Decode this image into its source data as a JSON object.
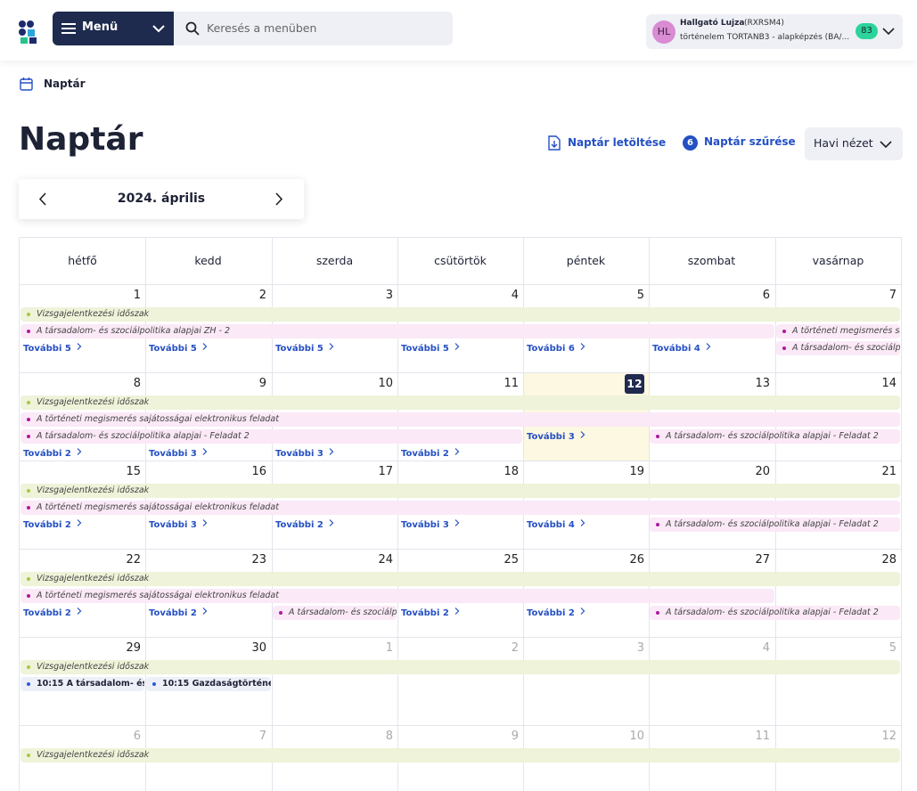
{
  "header": {
    "menu": "Menü",
    "search": "Keresés a menüben",
    "user": {
      "initials": "HL",
      "name": "Hallgató Lujza",
      "code": "(RXRSM4)",
      "program": "történelem TORTANB3 - alapképzés (BA/...",
      "badge": "83"
    }
  },
  "breadcrumb": "Naptár",
  "title": "Naptár",
  "actions": {
    "download": "Naptár letöltése",
    "filter_count": "6",
    "filter": "Naptár szűrése",
    "view": "Havi nézet"
  },
  "month": "2024. április",
  "weekdays": [
    "hétfő",
    "kedd",
    "szerda",
    "csütörtök",
    "péntek",
    "szombat",
    "vasárnap"
  ],
  "weeks": [
    {
      "days": [
        {
          "day": 1
        },
        {
          "day": 2
        },
        {
          "day": 3
        },
        {
          "day": 4
        },
        {
          "day": 5
        },
        {
          "day": 6
        },
        {
          "day": 7
        }
      ],
      "events": [
        {
          "label": "Vizsgajelentkezési időszak",
          "kind": "period",
          "lane": 0,
          "start": 0,
          "end": 6
        },
        {
          "label": "A társadalom- és szociálpolitika alapjai ZH - 2",
          "kind": "deadline",
          "lane": 1,
          "start": 0,
          "end": 5
        },
        {
          "label": "A történeti megismerés sa...",
          "kind": "deadline",
          "lane": 1,
          "start": 6,
          "end": 6
        },
        {
          "label": "A társadalom- és szociálp...",
          "kind": "deadline",
          "lane": 2,
          "start": 6,
          "end": 6
        }
      ],
      "more": [
        "További 5",
        "További 5",
        "További 5",
        "További 5",
        "További 6",
        "További 4",
        null
      ]
    },
    {
      "days": [
        {
          "day": 8
        },
        {
          "day": 9
        },
        {
          "day": 10
        },
        {
          "day": 11
        },
        {
          "day": 12,
          "today": true
        },
        {
          "day": 13
        },
        {
          "day": 14
        }
      ],
      "events": [
        {
          "label": "Vizsgajelentkezési időszak",
          "kind": "period",
          "lane": 0,
          "start": 0,
          "end": 6
        },
        {
          "label": "A történeti megismerés sajátosságai elektronikus feladat",
          "kind": "deadline",
          "lane": 1,
          "start": 0,
          "end": 6
        },
        {
          "label": "A társadalom- és szociálpolitika alapjai - Feladat 2",
          "kind": "deadline",
          "lane": 2,
          "start": 0,
          "end": 3
        },
        {
          "label": "A társadalom- és szociálpolitika alapjai - Feladat 2",
          "kind": "deadline",
          "lane": 2,
          "start": 5,
          "end": 6
        }
      ],
      "more": [
        "További 2",
        "További 3",
        "További 3",
        "További 2",
        "További 3",
        null,
        null
      ]
    },
    {
      "days": [
        {
          "day": 15
        },
        {
          "day": 16
        },
        {
          "day": 17
        },
        {
          "day": 18
        },
        {
          "day": 19
        },
        {
          "day": 20
        },
        {
          "day": 21
        }
      ],
      "events": [
        {
          "label": "Vizsgajelentkezési időszak",
          "kind": "period",
          "lane": 0,
          "start": 0,
          "end": 6
        },
        {
          "label": "A történeti megismerés sajátosságai elektronikus feladat",
          "kind": "deadline",
          "lane": 1,
          "start": 0,
          "end": 6
        },
        {
          "label": "A társadalom- és szociálpolitika alapjai - Feladat 2",
          "kind": "deadline",
          "lane": 2,
          "start": 5,
          "end": 6
        }
      ],
      "more": [
        "További 2",
        "További 3",
        "További 2",
        "További 3",
        "További 4",
        null,
        null
      ]
    },
    {
      "days": [
        {
          "day": 22
        },
        {
          "day": 23
        },
        {
          "day": 24
        },
        {
          "day": 25
        },
        {
          "day": 26
        },
        {
          "day": 27
        },
        {
          "day": 28
        }
      ],
      "events": [
        {
          "label": "Vizsgajelentkezési időszak",
          "kind": "period",
          "lane": 0,
          "start": 0,
          "end": 6
        },
        {
          "label": "A történeti megismerés sajátosságai elektronikus feladat",
          "kind": "deadline",
          "lane": 1,
          "start": 0,
          "end": 5
        },
        {
          "label": "A társadalom- és szociálp...",
          "kind": "deadline",
          "lane": 2,
          "start": 2,
          "end": 2
        },
        {
          "label": "A társadalom- és szociálpolitika alapjai - Feladat 2",
          "kind": "deadline",
          "lane": 2,
          "start": 5,
          "end": 6
        }
      ],
      "more": [
        "További 2",
        "További 2",
        null,
        "További 2",
        "További 2",
        null,
        null
      ]
    },
    {
      "days": [
        {
          "day": 29
        },
        {
          "day": 30
        },
        {
          "day": 1,
          "other": true
        },
        {
          "day": 2,
          "other": true
        },
        {
          "day": 3,
          "other": true
        },
        {
          "day": 4,
          "other": true
        },
        {
          "day": 5,
          "other": true
        }
      ],
      "events": [
        {
          "label": "Vizsgajelentkezési időszak",
          "kind": "period",
          "lane": 0,
          "start": 0,
          "end": 6
        },
        {
          "time": "10:15",
          "label": "A társadalom- és ...",
          "kind": "exam",
          "lane": 1,
          "start": 0,
          "end": 0
        },
        {
          "time": "10:15",
          "label": "Gazdaságtörténe...",
          "kind": "exam",
          "lane": 1,
          "start": 1,
          "end": 1
        }
      ],
      "more": [
        null,
        null,
        null,
        null,
        null,
        null,
        null
      ]
    },
    {
      "days": [
        {
          "day": 6,
          "other": true
        },
        {
          "day": 7,
          "other": true
        },
        {
          "day": 8,
          "other": true
        },
        {
          "day": 9,
          "other": true
        },
        {
          "day": 10,
          "other": true
        },
        {
          "day": 11,
          "other": true
        },
        {
          "day": 12,
          "other": true
        }
      ],
      "events": [
        {
          "label": "Vizsgajelentkezési időszak",
          "kind": "period",
          "lane": 0,
          "start": 0,
          "end": 6
        }
      ],
      "more": [
        null,
        null,
        null,
        null,
        null,
        null,
        null
      ]
    }
  ]
}
